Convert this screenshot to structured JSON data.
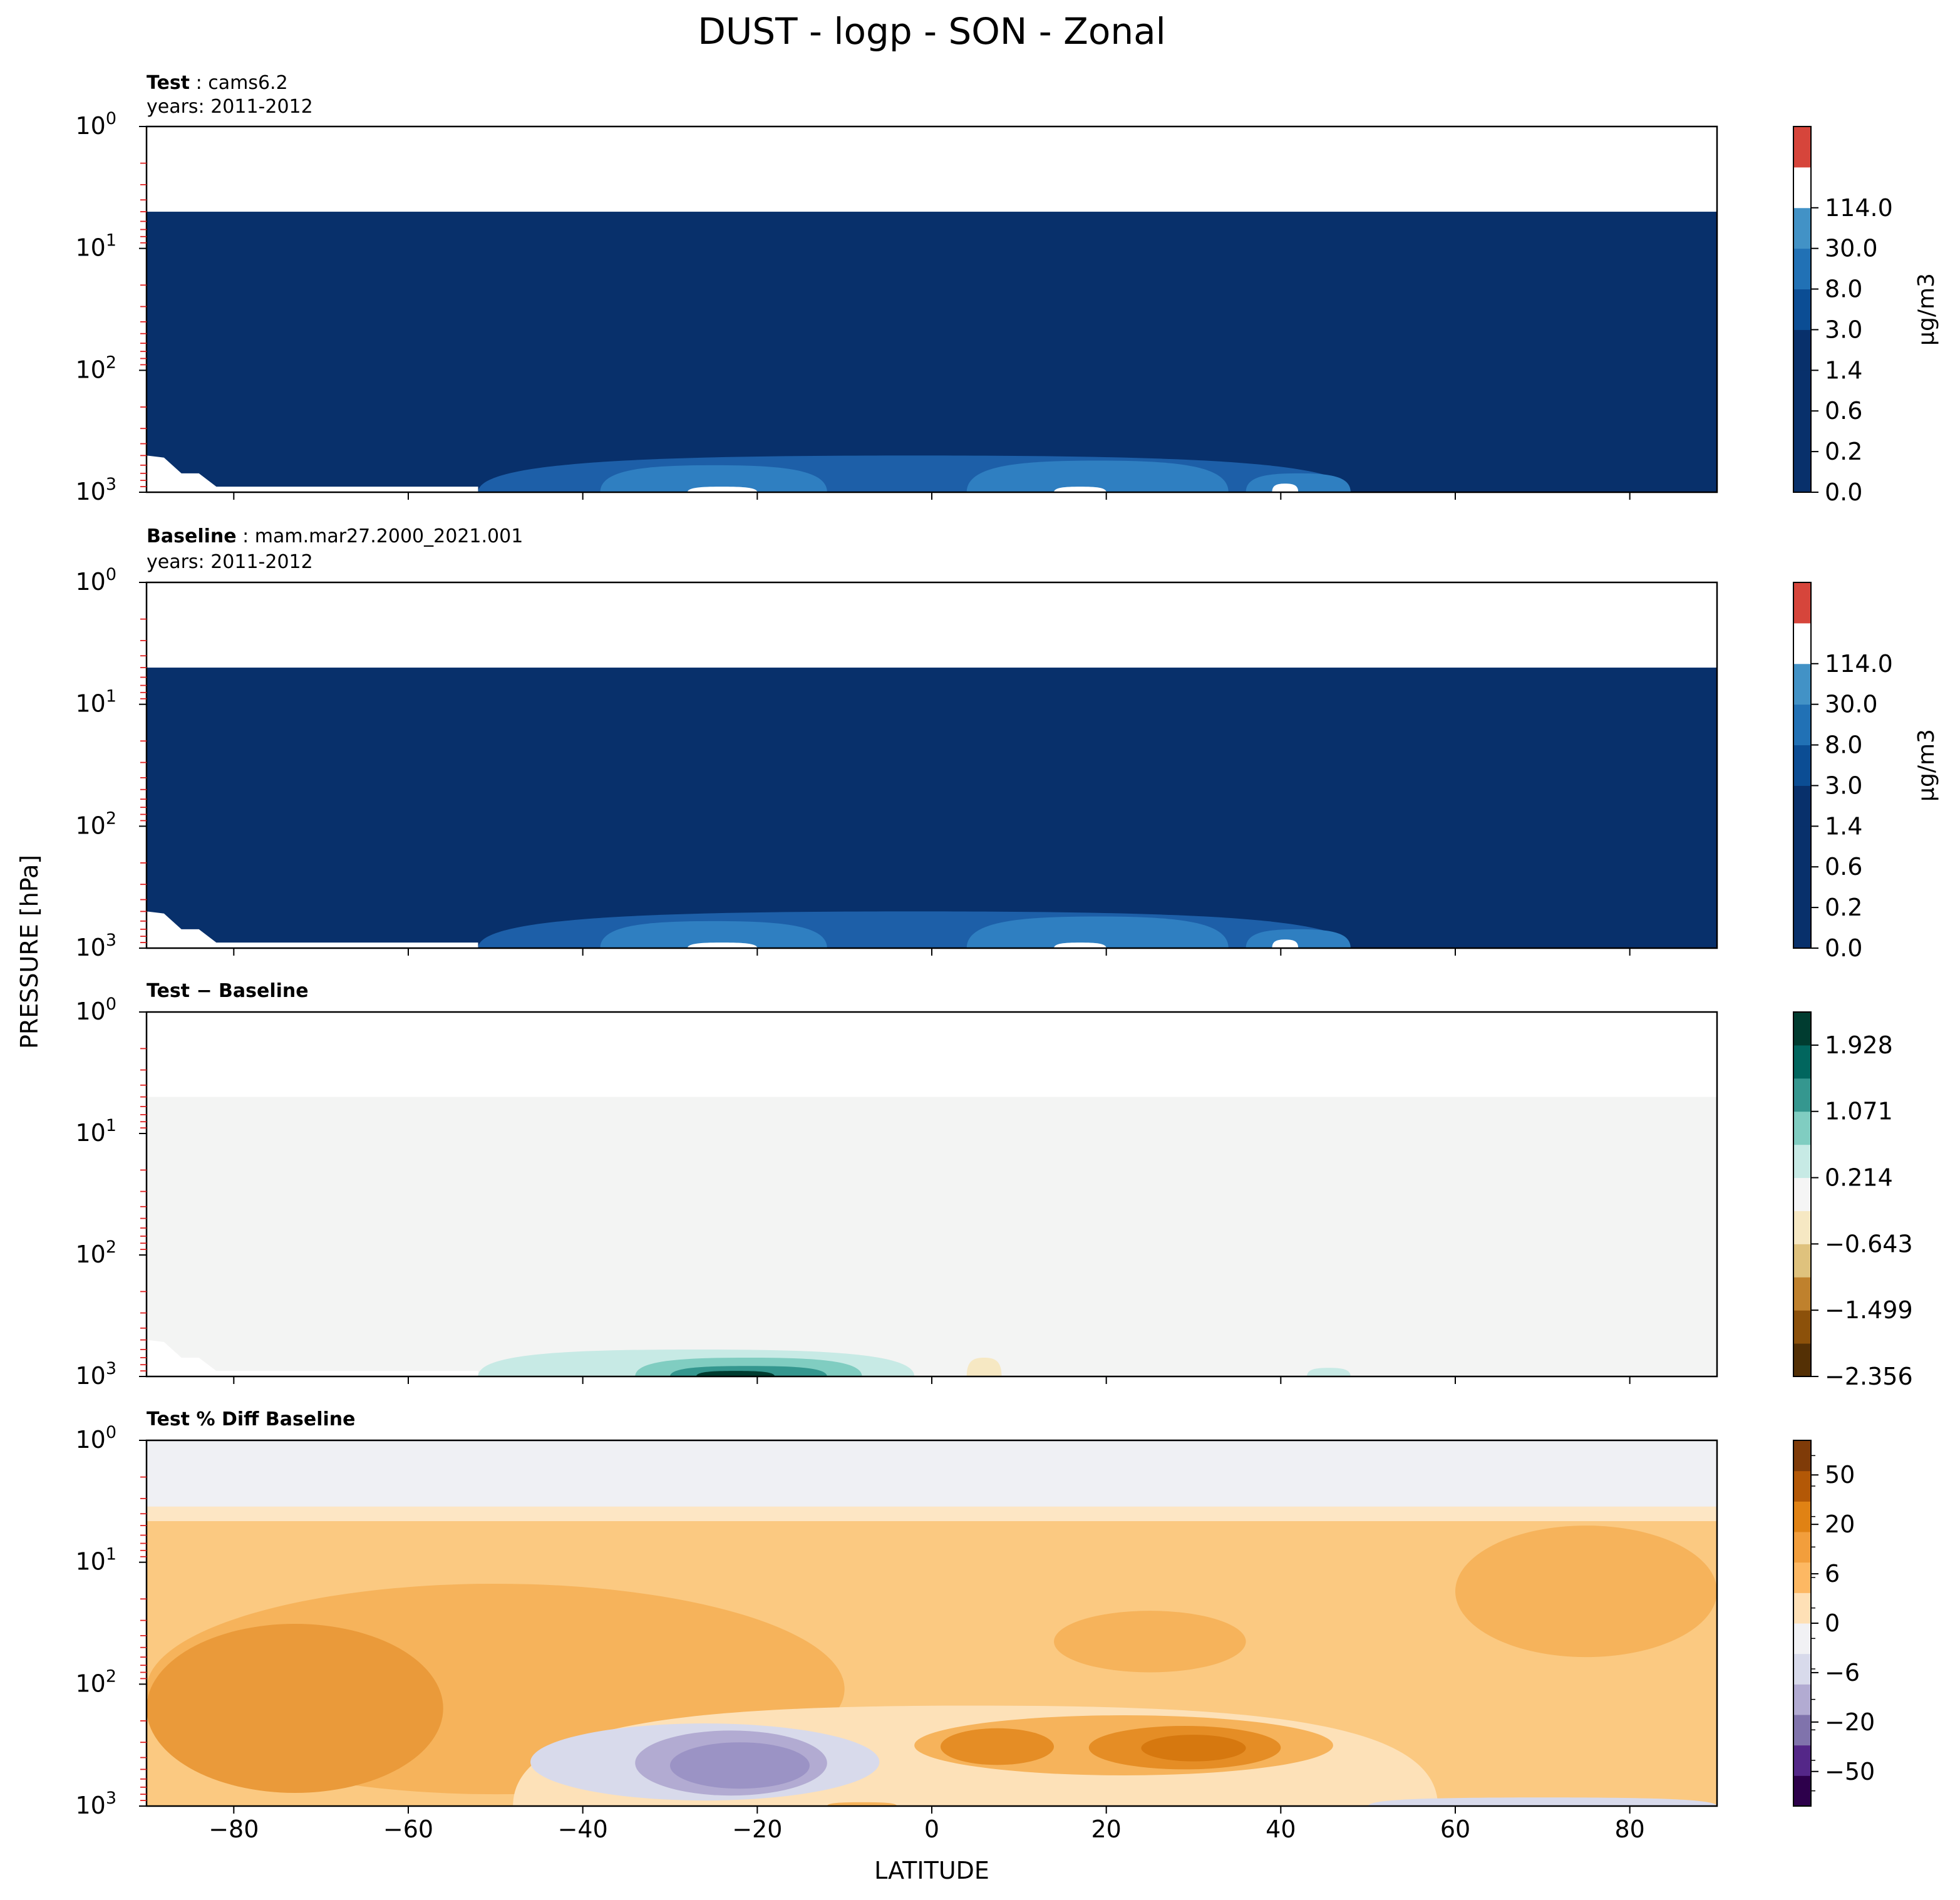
{
  "figure": {
    "title": "DUST - logp - SON - Zonal",
    "ylabel": "PRESSURE [hPa]",
    "xlabel": "LATITUDE"
  },
  "chart_data": [
    {
      "type": "heatmap",
      "case_label": "Test",
      "case_name": "cams6.2",
      "years": "years: 2011-2012",
      "colorbar_label": "μg/m3",
      "colorbar_ticks": [
        "0.0",
        "0.2",
        "0.6",
        "1.4",
        "3.0",
        "8.0",
        "30.0",
        "114.0"
      ],
      "colormap": [
        "#08306b",
        "#08306b",
        "#08306b",
        "#08306b",
        "#0b4d94",
        "#2171b5",
        "#4292c6",
        "#ffffff",
        "#d6453b"
      ],
      "xlim": [
        -90,
        90
      ],
      "ylim": [
        1000,
        1
      ],
      "yscale": "log",
      "xticks": [
        -80,
        -60,
        -40,
        -20,
        0,
        20,
        40,
        60,
        80
      ],
      "yticks": [
        "10^0",
        "10^1",
        "10^2",
        "10^3"
      ],
      "field_top_hpa": 5,
      "fill": "#08306b",
      "features": [
        {
          "kind": "blob",
          "lat_min": -52,
          "lat_max": 48,
          "p_top": 500,
          "color": "#1d5fa8"
        },
        {
          "kind": "blob",
          "lat_min": -38,
          "lat_max": -12,
          "p_top": 600,
          "color": "#2f7fc1"
        },
        {
          "kind": "blob",
          "lat_min": 4,
          "lat_max": 34,
          "p_top": 550,
          "color": "#2f7fc1"
        },
        {
          "kind": "blob",
          "lat_min": 36,
          "lat_max": 48,
          "p_top": 700,
          "color": "#2f7fc1"
        },
        {
          "kind": "blob",
          "lat_min": -28,
          "lat_max": -20,
          "p_top": 900,
          "color": "#ffffff"
        },
        {
          "kind": "blob",
          "lat_min": 14,
          "lat_max": 20,
          "p_top": 900,
          "color": "#ffffff"
        },
        {
          "kind": "blob",
          "lat_min": 39,
          "lat_max": 42,
          "p_top": 850,
          "color": "#ffffff"
        }
      ]
    },
    {
      "type": "heatmap",
      "case_label": "Baseline",
      "case_name": "mam.mar27.2000_2021.001",
      "years": "years: 2011-2012",
      "colorbar_label": "μg/m3",
      "colorbar_ticks": [
        "0.0",
        "0.2",
        "0.6",
        "1.4",
        "3.0",
        "8.0",
        "30.0",
        "114.0"
      ],
      "colormap": [
        "#08306b",
        "#08306b",
        "#08306b",
        "#08306b",
        "#0b4d94",
        "#2171b5",
        "#4292c6",
        "#ffffff",
        "#d6453b"
      ],
      "xlim": [
        -90,
        90
      ],
      "ylim": [
        1000,
        1
      ],
      "yscale": "log",
      "xticks": [
        -80,
        -60,
        -40,
        -20,
        0,
        20,
        40,
        60,
        80
      ],
      "yticks": [
        "10^0",
        "10^1",
        "10^2",
        "10^3"
      ],
      "field_top_hpa": 5,
      "fill": "#08306b",
      "features": [
        {
          "kind": "blob",
          "lat_min": -52,
          "lat_max": 48,
          "p_top": 500,
          "color": "#1d5fa8"
        },
        {
          "kind": "blob",
          "lat_min": -38,
          "lat_max": -12,
          "p_top": 600,
          "color": "#2f7fc1"
        },
        {
          "kind": "blob",
          "lat_min": 4,
          "lat_max": 34,
          "p_top": 550,
          "color": "#2f7fc1"
        },
        {
          "kind": "blob",
          "lat_min": 36,
          "lat_max": 48,
          "p_top": 700,
          "color": "#2f7fc1"
        },
        {
          "kind": "blob",
          "lat_min": -28,
          "lat_max": -20,
          "p_top": 900,
          "color": "#ffffff"
        },
        {
          "kind": "blob",
          "lat_min": 14,
          "lat_max": 20,
          "p_top": 900,
          "color": "#ffffff"
        },
        {
          "kind": "blob",
          "lat_min": 39,
          "lat_max": 42,
          "p_top": 850,
          "color": "#ffffff"
        }
      ]
    },
    {
      "type": "heatmap",
      "case_label": "Test − Baseline",
      "colorbar_ticks": [
        "−2.356",
        "−1.499",
        "−0.643",
        "0.214",
        "1.071",
        "1.928"
      ],
      "colormap": [
        "#543005",
        "#8c510a",
        "#bf812d",
        "#dfc27d",
        "#f6e8c3",
        "#f5f5f5",
        "#c7eae5",
        "#80cdc1",
        "#35978f",
        "#01665e",
        "#003c30"
      ],
      "xlim": [
        -90,
        90
      ],
      "ylim": [
        1000,
        1
      ],
      "yscale": "log",
      "xticks": [
        -80,
        -60,
        -40,
        -20,
        0,
        20,
        40,
        60,
        80
      ],
      "yticks": [
        "10^0",
        "10^1",
        "10^2",
        "10^3"
      ],
      "field_top_hpa": 5,
      "fill": "#f3f4f3",
      "features": [
        {
          "kind": "blob",
          "lat_min": -52,
          "lat_max": -2,
          "p_top": 600,
          "color": "#c7eae5"
        },
        {
          "kind": "blob",
          "lat_min": -34,
          "lat_max": -8,
          "p_top": 700,
          "color": "#80cdc1"
        },
        {
          "kind": "blob",
          "lat_min": -30,
          "lat_max": -12,
          "p_top": 820,
          "color": "#35978f"
        },
        {
          "kind": "blob",
          "lat_min": -27,
          "lat_max": -18,
          "p_top": 900,
          "color": "#003c30"
        },
        {
          "kind": "blob",
          "lat_min": 43,
          "lat_max": 48,
          "p_top": 850,
          "color": "#c7eae5"
        },
        {
          "kind": "blob",
          "lat_min": 4,
          "lat_max": 8,
          "p_top": 700,
          "color": "#f6e8c3"
        }
      ]
    },
    {
      "type": "heatmap",
      "case_label": "Test % Diff Baseline",
      "colorbar_ticks": [
        "−50",
        "−20",
        "−6",
        "0",
        "6",
        "20",
        "50"
      ],
      "colormap": [
        "#2d004b",
        "#542788",
        "#8073ac",
        "#b2abd2",
        "#d8daeb",
        "#f1f1f4",
        "#fee0b6",
        "#fdb863",
        "#f29e3c",
        "#e08214",
        "#b35806",
        "#7f3b08"
      ],
      "xlim": [
        -90,
        90
      ],
      "ylim": [
        1000,
        1
      ],
      "yscale": "log",
      "xticks": [
        -80,
        -60,
        -40,
        -20,
        0,
        20,
        40,
        60,
        80
      ],
      "yticks": [
        "10^0",
        "10^1",
        "10^2",
        "10^3"
      ],
      "field_top_hpa": 1,
      "fill": "#fbc981",
      "features": [
        {
          "kind": "band",
          "p_min": 1,
          "p_max": 3.5,
          "color": "#eff0f4"
        },
        {
          "kind": "band",
          "p_min": 3.5,
          "p_max": 4.6,
          "color": "#fde6c4"
        },
        {
          "kind": "blob",
          "lat_min": -90,
          "lat_max": -10,
          "p_top": 15,
          "p_bottom": 800,
          "color": "#f6b35b"
        },
        {
          "kind": "blob",
          "lat_min": 60,
          "lat_max": 90,
          "p_top": 5,
          "p_bottom": 60,
          "color": "#f6b35b"
        },
        {
          "kind": "blob",
          "lat_min": 14,
          "lat_max": 36,
          "p_top": 25,
          "p_bottom": 80,
          "color": "#f6b35b"
        },
        {
          "kind": "blob",
          "lat_min": -90,
          "lat_max": -56,
          "p_top": 32,
          "p_bottom": 780,
          "color": "#ea9a3a"
        },
        {
          "kind": "blob",
          "lat_min": -48,
          "lat_max": 58,
          "p_top": 150,
          "p_bottom": 1000,
          "color": "#fde1b8"
        },
        {
          "kind": "blob",
          "lat_min": -46,
          "lat_max": -6,
          "p_top": 210,
          "p_bottom": 900,
          "color": "#d8daeb"
        },
        {
          "kind": "blob",
          "lat_min": -34,
          "lat_max": -12,
          "p_top": 240,
          "p_bottom": 820,
          "color": "#b2abd2"
        },
        {
          "kind": "blob",
          "lat_min": -30,
          "lat_max": -14,
          "p_top": 300,
          "p_bottom": 720,
          "color": "#9b93c5"
        },
        {
          "kind": "blob",
          "lat_min": -2,
          "lat_max": 46,
          "p_top": 180,
          "p_bottom": 560,
          "color": "#f6b35b"
        },
        {
          "kind": "blob",
          "lat_min": 1,
          "lat_max": 14,
          "p_top": 230,
          "p_bottom": 460,
          "color": "#e58d25"
        },
        {
          "kind": "blob",
          "lat_min": 18,
          "lat_max": 40,
          "p_top": 220,
          "p_bottom": 500,
          "color": "#e58d25"
        },
        {
          "kind": "blob",
          "lat_min": 24,
          "lat_max": 36,
          "p_top": 260,
          "p_bottom": 430,
          "color": "#d6780f"
        },
        {
          "kind": "blob",
          "lat_min": 50,
          "lat_max": 90,
          "p_top": 850,
          "p_bottom": 1000,
          "color": "#d8daeb"
        },
        {
          "kind": "blob",
          "lat_min": -12,
          "lat_max": -4,
          "p_top": 930,
          "p_bottom": 1000,
          "color": "#f6b35b"
        }
      ]
    }
  ]
}
